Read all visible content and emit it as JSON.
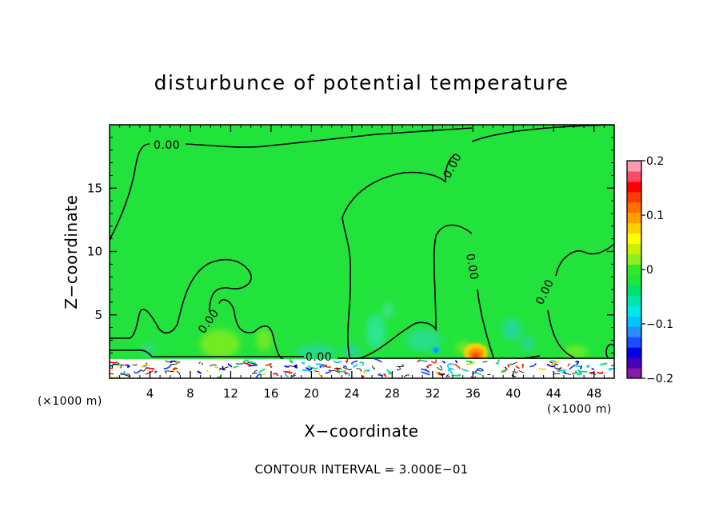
{
  "chart_data": {
    "type": "heatmap",
    "title": "disturbunce of potential temperature",
    "xlabel": "X−coordinate",
    "ylabel": "Z−coordinate",
    "x_unit": "(×1000 m)",
    "z_unit": "(×1000 m)",
    "xlim": [
      0,
      50
    ],
    "ylim": [
      0,
      20
    ],
    "x_ticks": [
      "4",
      "8",
      "12",
      "16",
      "20",
      "24",
      "28",
      "32",
      "36",
      "40",
      "44",
      "48"
    ],
    "x_tick_values": [
      4,
      8,
      12,
      16,
      20,
      24,
      28,
      32,
      36,
      40,
      44,
      48
    ],
    "y_ticks": [
      "5",
      "10",
      "15"
    ],
    "y_tick_values": [
      5,
      10,
      15
    ],
    "grid": false,
    "footer": "CONTOUR INTERVAL = 3.000E−01",
    "contour_label": "0.00",
    "colorbar": {
      "min": -0.2,
      "max": 0.2,
      "tick_labels": [
        "0.2",
        "0.1",
        "0",
        "−0.1",
        "−0.2"
      ],
      "tick_values": [
        0.2,
        0.1,
        0,
        -0.1,
        -0.2
      ],
      "placement": "right",
      "colors": [
        "#8a1aa5",
        "#4b00b8",
        "#0000e8",
        "#1b4dff",
        "#2a8cff",
        "#00c4ff",
        "#00e8e8",
        "#00e6aa",
        "#00e070",
        "#1fe53a",
        "#2ee82a",
        "#8cf020",
        "#c8f000",
        "#ffff00",
        "#ffd000",
        "#ffa000",
        "#ff7000",
        "#ff3c00",
        "#ff0000",
        "#ff4a66",
        "#ff9ab0"
      ]
    },
    "field_color": "#22e33c"
  }
}
